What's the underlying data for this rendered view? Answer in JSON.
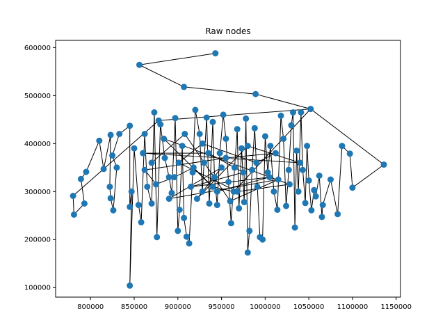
{
  "chart_data": {
    "type": "scatter",
    "title": "Raw nodes",
    "xlabel": "",
    "ylabel": "",
    "xlim": [
      760000,
      1155000
    ],
    "ylim": [
      80000,
      615000
    ],
    "x_ticks": [
      800000,
      850000,
      900000,
      950000,
      1000000,
      1050000,
      1100000,
      1150000
    ],
    "x_tick_labels": [
      "800000",
      "850000",
      "900000",
      "950000",
      "1000000",
      "1050000",
      "1100000",
      "1150000"
    ],
    "y_ticks": [
      100000,
      200000,
      300000,
      400000,
      500000,
      600000
    ],
    "y_tick_labels": [
      "100000",
      "200000",
      "300000",
      "400000",
      "500000",
      "600000"
    ],
    "grid": false,
    "point_color": "#1f77b4",
    "line_color": "#000000",
    "connected": true,
    "points": [
      [
        943000,
        588000
      ],
      [
        856000,
        564000
      ],
      [
        907000,
        518000
      ],
      [
        989000,
        503000
      ],
      [
        1052000,
        472000
      ],
      [
        878000,
        448000
      ],
      [
        780000,
        291000
      ],
      [
        781000,
        252000
      ],
      [
        793000,
        275000
      ],
      [
        789000,
        326000
      ],
      [
        795000,
        341000
      ],
      [
        810000,
        406000
      ],
      [
        815000,
        347000
      ],
      [
        823000,
        418000
      ],
      [
        822000,
        310000
      ],
      [
        823000,
        286000
      ],
      [
        826000,
        261000
      ],
      [
        830000,
        350000
      ],
      [
        825000,
        375000
      ],
      [
        833000,
        420000
      ],
      [
        845000,
        437000
      ],
      [
        845000,
        268000
      ],
      [
        847000,
        300000
      ],
      [
        845000,
        104000
      ],
      [
        850000,
        390000
      ],
      [
        855000,
        272000
      ],
      [
        858000,
        236000
      ],
      [
        862000,
        420000
      ],
      [
        865000,
        310000
      ],
      [
        870000,
        275000
      ],
      [
        873000,
        465000
      ],
      [
        876000,
        205000
      ],
      [
        880000,
        440000
      ],
      [
        885000,
        370000
      ],
      [
        890000,
        330000
      ],
      [
        893000,
        297000
      ],
      [
        897000,
        453000
      ],
      [
        900000,
        218000
      ],
      [
        902000,
        262000
      ],
      [
        905000,
        395000
      ],
      [
        907000,
        245000
      ],
      [
        910000,
        206000
      ],
      [
        913000,
        192000
      ],
      [
        917000,
        340000
      ],
      [
        920000,
        470000
      ],
      [
        925000,
        420000
      ],
      [
        928000,
        300000
      ],
      [
        930000,
        360000
      ],
      [
        933000,
        454000
      ],
      [
        936000,
        275000
      ],
      [
        940000,
        445000
      ],
      [
        942000,
        330000
      ],
      [
        945000,
        272000
      ],
      [
        948000,
        380000
      ],
      [
        952000,
        460000
      ],
      [
        955000,
        410000
      ],
      [
        958000,
        320000
      ],
      [
        961000,
        234000
      ],
      [
        965000,
        350000
      ],
      [
        968000,
        430000
      ],
      [
        970000,
        265000
      ],
      [
        973000,
        390000
      ],
      [
        976000,
        278000
      ],
      [
        978000,
        452000
      ],
      [
        980000,
        173000
      ],
      [
        982000,
        218000
      ],
      [
        985000,
        345000
      ],
      [
        988000,
        432000
      ],
      [
        991000,
        310000
      ],
      [
        994000,
        205000
      ],
      [
        997000,
        200000
      ],
      [
        1000000,
        415000
      ],
      [
        1003000,
        340000
      ],
      [
        1006000,
        395000
      ],
      [
        1010000,
        300000
      ],
      [
        1014000,
        262000
      ],
      [
        1018000,
        458000
      ],
      [
        1021000,
        410000
      ],
      [
        1024000,
        270000
      ],
      [
        1027000,
        345000
      ],
      [
        1030000,
        438000
      ],
      [
        1032000,
        465000
      ],
      [
        1034000,
        225000
      ],
      [
        1036000,
        385000
      ],
      [
        1038000,
        300000
      ],
      [
        1041000,
        465000
      ],
      [
        1043000,
        345000
      ],
      [
        1046000,
        276000
      ],
      [
        1048000,
        395000
      ],
      [
        1050000,
        323000
      ],
      [
        1053000,
        261000
      ],
      [
        1056000,
        303000
      ],
      [
        1058000,
        290000
      ],
      [
        1062000,
        333000
      ],
      [
        1065000,
        247000
      ],
      [
        1066000,
        272000
      ],
      [
        1075000,
        325000
      ],
      [
        1083000,
        253000
      ],
      [
        1088000,
        395000
      ],
      [
        1097000,
        379000
      ],
      [
        1100000,
        308000
      ],
      [
        1136000,
        356000
      ],
      [
        1052000,
        472000
      ],
      [
        964000,
        300000
      ],
      [
        940000,
        310000
      ],
      [
        918000,
        350000
      ],
      [
        896000,
        330000
      ],
      [
        875000,
        315000
      ],
      [
        862000,
        345000
      ],
      [
        955000,
        370000
      ],
      [
        1012000,
        380000
      ],
      [
        990000,
        360000
      ],
      [
        928000,
        400000
      ],
      [
        901000,
        360000
      ],
      [
        968000,
        300000
      ],
      [
        1028000,
        315000
      ],
      [
        884000,
        410000
      ],
      [
        945000,
        300000
      ],
      [
        1005000,
        330000
      ],
      [
        915000,
        310000
      ],
      [
        975000,
        340000
      ],
      [
        935000,
        380000
      ],
      [
        860000,
        380000
      ],
      [
        1040000,
        360000
      ],
      [
        980000,
        395000
      ],
      [
        922000,
        285000
      ],
      [
        950000,
        350000
      ],
      [
        890000,
        285000
      ],
      [
        1015000,
        325000
      ],
      [
        960000,
        280000
      ],
      [
        908000,
        420000
      ],
      [
        870000,
        360000
      ]
    ]
  }
}
